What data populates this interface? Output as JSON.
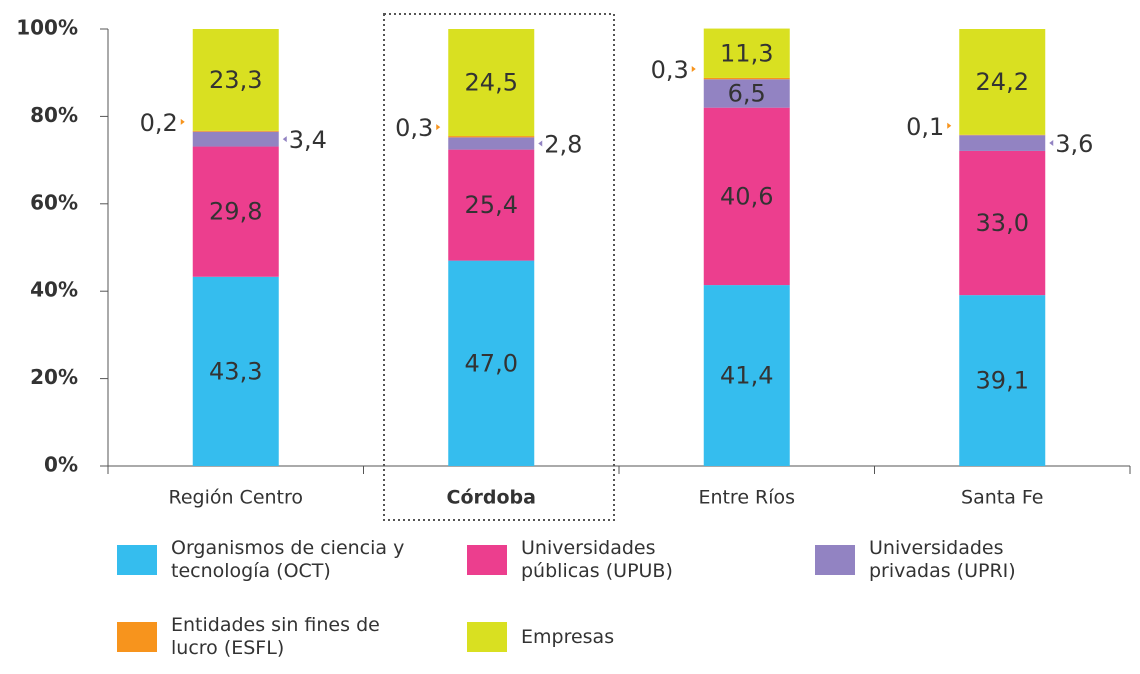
{
  "chart_data": {
    "type": "stacked_bar",
    "categories": [
      "Región Centro",
      "Córdoba",
      "Entre Ríos",
      "Santa Fe"
    ],
    "series": [
      {
        "name": "Organismos de ciencia y tecnología (OCT)",
        "color": "#35bdee",
        "values": [
          43.3,
          47.0,
          41.4,
          39.1
        ],
        "value_labels": [
          "43,3",
          "47,0",
          "41,4",
          "39,1"
        ]
      },
      {
        "name": "Universidades públicas (UPUB)",
        "color": "#ec3e8e",
        "values": [
          29.8,
          25.4,
          40.6,
          33.0
        ],
        "value_labels": [
          "29,8",
          "25,4",
          "40,6",
          "33,0"
        ]
      },
      {
        "name": "Universidades privadas (UPRI)",
        "color": "#9283c2",
        "values": [
          3.4,
          2.8,
          6.5,
          3.6
        ],
        "value_labels": [
          "3,4",
          "2,8",
          "6,5",
          "3,6"
        ]
      },
      {
        "name": "Entidades sin fines de lucro (ESFL)",
        "color": "#f7941d",
        "values": [
          0.2,
          0.3,
          0.3,
          0.1
        ],
        "value_labels": [
          "0,2",
          "0,3",
          "0,3",
          "0,1"
        ]
      },
      {
        "name": "Empresas",
        "color": "#d9e021",
        "values": [
          23.3,
          24.5,
          11.3,
          24.2
        ],
        "value_labels": [
          "23,3",
          "24,5",
          "11,3",
          "24,2"
        ]
      }
    ],
    "ylim": [
      0,
      100
    ],
    "yticks": [
      {
        "value": 0,
        "label": "0%"
      },
      {
        "value": 20,
        "label": "20%"
      },
      {
        "value": 40,
        "label": "40%"
      },
      {
        "value": 60,
        "label": "60%"
      },
      {
        "value": 80,
        "label": "80%"
      },
      {
        "value": 100,
        "label": "100%"
      }
    ]
  }
}
